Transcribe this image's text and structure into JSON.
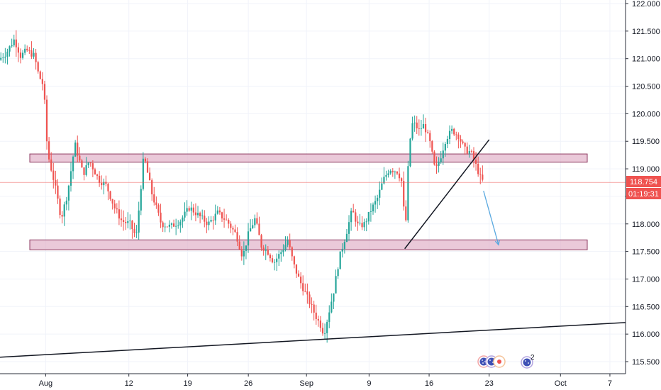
{
  "chart_data": {
    "type": "candlestick",
    "instrument_hint": "USD/JPY-like price series",
    "x_tick_labels": [
      "Aug",
      "12",
      "19",
      "26",
      "Sep",
      "9",
      "16",
      "23",
      "Oct",
      "7"
    ],
    "y_tick_labels": [
      "115.500",
      "116.000",
      "116.500",
      "117.000",
      "117.500",
      "118.000",
      "118.500",
      "119.000",
      "119.500",
      "120.000",
      "120.500",
      "121.000",
      "121.500",
      "122.000"
    ],
    "ylim": [
      115.3,
      122.1
    ],
    "last_price": "118.754",
    "countdown": "01:19:31",
    "colors": {
      "up": "#26a69a",
      "down": "#ef5350",
      "zone_fill": "#e3b7cc",
      "zone_border": "#8e3a60",
      "price_line": "#ef5350",
      "arrow": "#5aa9e0",
      "trendline": "#131722",
      "grid": "#f0f3fa",
      "axis_text": "#131722"
    },
    "zones": [
      {
        "name": "resistance-zone",
        "y_low": 119.12,
        "y_high": 119.27
      },
      {
        "name": "support-zone",
        "y_low": 117.53,
        "y_high": 117.71
      }
    ],
    "lines": [
      {
        "name": "long-trendline",
        "x1": 0,
        "y1": 115.58,
        "x2": 1,
        "y2": 116.21
      },
      {
        "name": "rising-trendline",
        "x1": 0.647,
        "y1": 117.55,
        "x2": 0.782,
        "y2": 119.53
      }
    ],
    "arrow": {
      "x1": 0.773,
      "y1": 118.6,
      "x2": 0.797,
      "y2": 117.62
    },
    "keypoints": [
      [
        0,
        120.98
      ],
      [
        0.012,
        121.1
      ],
      [
        0.025,
        121.35
      ],
      [
        0.035,
        121.05
      ],
      [
        0.045,
        121.15
      ],
      [
        0.057,
        121.05
      ],
      [
        0.064,
        120.7
      ],
      [
        0.072,
        120.5
      ],
      [
        0.078,
        119.3
      ],
      [
        0.09,
        118.7
      ],
      [
        0.1,
        118.1
      ],
      [
        0.11,
        118.55
      ],
      [
        0.122,
        119.45
      ],
      [
        0.135,
        118.9
      ],
      [
        0.145,
        119.15
      ],
      [
        0.16,
        118.8
      ],
      [
        0.172,
        118.7
      ],
      [
        0.185,
        118.3
      ],
      [
        0.197,
        118.05
      ],
      [
        0.21,
        118.0
      ],
      [
        0.22,
        117.75
      ],
      [
        0.232,
        119.25
      ],
      [
        0.245,
        118.55
      ],
      [
        0.26,
        118.0
      ],
      [
        0.275,
        117.95
      ],
      [
        0.29,
        118.05
      ],
      [
        0.305,
        118.3
      ],
      [
        0.32,
        118.15
      ],
      [
        0.335,
        118.0
      ],
      [
        0.35,
        118.2
      ],
      [
        0.365,
        118.05
      ],
      [
        0.38,
        117.8
      ],
      [
        0.39,
        117.4
      ],
      [
        0.4,
        117.85
      ],
      [
        0.41,
        118.1
      ],
      [
        0.42,
        117.6
      ],
      [
        0.43,
        117.5
      ],
      [
        0.44,
        117.3
      ],
      [
        0.455,
        117.55
      ],
      [
        0.462,
        117.7
      ],
      [
        0.472,
        117.25
      ],
      [
        0.48,
        117.0
      ],
      [
        0.49,
        116.75
      ],
      [
        0.5,
        116.5
      ],
      [
        0.508,
        116.3
      ],
      [
        0.515,
        116.15
      ],
      [
        0.52,
        116.0
      ],
      [
        0.525,
        116.25
      ],
      [
        0.535,
        116.75
      ],
      [
        0.545,
        117.4
      ],
      [
        0.555,
        117.8
      ],
      [
        0.565,
        118.25
      ],
      [
        0.575,
        117.95
      ],
      [
        0.585,
        118.0
      ],
      [
        0.595,
        118.25
      ],
      [
        0.605,
        118.45
      ],
      [
        0.615,
        118.8
      ],
      [
        0.625,
        119.0
      ],
      [
        0.638,
        118.95
      ],
      [
        0.645,
        118.75
      ],
      [
        0.65,
        117.8
      ],
      [
        0.656,
        119.4
      ],
      [
        0.662,
        119.85
      ],
      [
        0.672,
        119.7
      ],
      [
        0.68,
        119.8
      ],
      [
        0.69,
        119.45
      ],
      [
        0.698,
        118.95
      ],
      [
        0.706,
        119.2
      ],
      [
        0.715,
        119.55
      ],
      [
        0.725,
        119.7
      ],
      [
        0.735,
        119.6
      ],
      [
        0.745,
        119.35
      ],
      [
        0.755,
        119.3
      ],
      [
        0.765,
        119.0
      ],
      [
        0.772,
        118.78
      ]
    ]
  },
  "icons": [
    "calendar-event-icon",
    "flag-marker-icon",
    "news-marker-icon"
  ],
  "event_badge": "2"
}
